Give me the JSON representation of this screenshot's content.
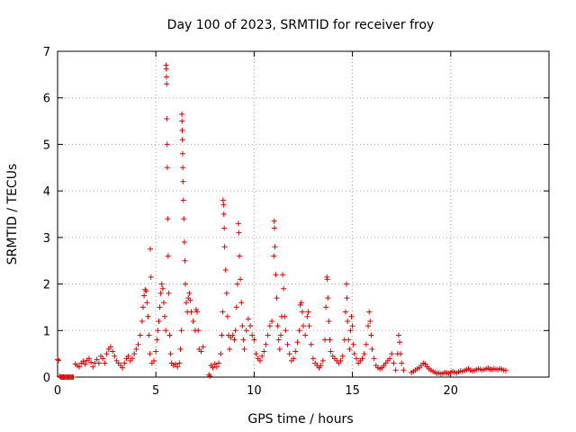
{
  "chart_data": {
    "type": "scatter",
    "title": "Day 100 of 2023, SRMTID for receiver froy",
    "xlabel": "GPS time / hours",
    "ylabel": "SRMTID / TECUs",
    "xlim": [
      0,
      25
    ],
    "ylim": [
      0,
      7
    ],
    "xticks": [
      0,
      5,
      10,
      15,
      20
    ],
    "yticks": [
      0,
      1,
      2,
      3,
      4,
      5,
      6,
      7
    ],
    "grid": true,
    "marker": "+",
    "color": "#e00000",
    "series": [
      {
        "name": "SRMTID",
        "points": [
          [
            0.0,
            0.38
          ],
          [
            0.05,
            0.36
          ],
          [
            0.1,
            0.02
          ],
          [
            0.15,
            0.0
          ],
          [
            0.2,
            0.0
          ],
          [
            0.25,
            0.0
          ],
          [
            0.3,
            0.0
          ],
          [
            0.35,
            0.0
          ],
          [
            0.4,
            0.0
          ],
          [
            0.45,
            0.0
          ],
          [
            0.5,
            0.0
          ],
          [
            0.55,
            0.0
          ],
          [
            0.6,
            0.0
          ],
          [
            0.65,
            0.0
          ],
          [
            0.7,
            0.0
          ],
          [
            0.75,
            0.0
          ],
          [
            0.8,
            0.0
          ],
          [
            0.9,
            0.28
          ],
          [
            1.0,
            0.25
          ],
          [
            1.1,
            0.22
          ],
          [
            1.2,
            0.3
          ],
          [
            1.3,
            0.34
          ],
          [
            1.4,
            0.28
          ],
          [
            1.5,
            0.36
          ],
          [
            1.6,
            0.4
          ],
          [
            1.7,
            0.32
          ],
          [
            1.8,
            0.22
          ],
          [
            1.9,
            0.3
          ],
          [
            2.0,
            0.38
          ],
          [
            2.1,
            0.3
          ],
          [
            2.2,
            0.45
          ],
          [
            2.3,
            0.4
          ],
          [
            2.4,
            0.3
          ],
          [
            2.5,
            0.5
          ],
          [
            2.6,
            0.6
          ],
          [
            2.7,
            0.65
          ],
          [
            2.8,
            0.55
          ],
          [
            2.9,
            0.45
          ],
          [
            3.0,
            0.35
          ],
          [
            3.1,
            0.3
          ],
          [
            3.2,
            0.25
          ],
          [
            3.3,
            0.2
          ],
          [
            3.4,
            0.3
          ],
          [
            3.5,
            0.4
          ],
          [
            3.6,
            0.45
          ],
          [
            3.7,
            0.35
          ],
          [
            3.8,
            0.4
          ],
          [
            3.9,
            0.5
          ],
          [
            4.0,
            0.6
          ],
          [
            4.1,
            0.7
          ],
          [
            4.2,
            0.9
          ],
          [
            4.3,
            1.2
          ],
          [
            4.35,
            1.5
          ],
          [
            4.4,
            1.75
          ],
          [
            4.45,
            1.88
          ],
          [
            4.5,
            1.85
          ],
          [
            4.55,
            1.6
          ],
          [
            4.6,
            1.3
          ],
          [
            4.65,
            0.9
          ],
          [
            4.7,
            0.5
          ],
          [
            4.72,
            2.75
          ],
          [
            4.75,
            2.15
          ],
          [
            4.8,
            0.3
          ],
          [
            4.9,
            0.35
          ],
          [
            5.0,
            0.55
          ],
          [
            5.05,
            0.8
          ],
          [
            5.1,
            1.0
          ],
          [
            5.15,
            1.2
          ],
          [
            5.2,
            1.5
          ],
          [
            5.25,
            1.8
          ],
          [
            5.3,
            2.0
          ],
          [
            5.35,
            1.9
          ],
          [
            5.4,
            1.6
          ],
          [
            5.45,
            1.3
          ],
          [
            5.5,
            1.0
          ],
          [
            5.52,
            6.7
          ],
          [
            5.53,
            6.62
          ],
          [
            5.54,
            6.45
          ],
          [
            5.55,
            6.3
          ],
          [
            5.56,
            5.55
          ],
          [
            5.57,
            5.0
          ],
          [
            5.58,
            4.5
          ],
          [
            5.6,
            3.4
          ],
          [
            5.62,
            2.6
          ],
          [
            5.65,
            1.8
          ],
          [
            5.7,
            0.9
          ],
          [
            5.75,
            0.5
          ],
          [
            5.8,
            0.3
          ],
          [
            5.9,
            0.25
          ],
          [
            6.0,
            0.28
          ],
          [
            6.1,
            0.22
          ],
          [
            6.2,
            0.3
          ],
          [
            6.25,
            0.6
          ],
          [
            6.3,
            1.0
          ],
          [
            6.32,
            5.65
          ],
          [
            6.33,
            5.5
          ],
          [
            6.34,
            5.3
          ],
          [
            6.35,
            5.1
          ],
          [
            6.36,
            4.8
          ],
          [
            6.37,
            4.5
          ],
          [
            6.38,
            4.2
          ],
          [
            6.4,
            3.8
          ],
          [
            6.42,
            3.4
          ],
          [
            6.45,
            2.9
          ],
          [
            6.48,
            2.5
          ],
          [
            6.5,
            2.0
          ],
          [
            6.55,
            1.6
          ],
          [
            6.6,
            1.4
          ],
          [
            6.65,
            1.7
          ],
          [
            6.7,
            1.8
          ],
          [
            6.75,
            1.65
          ],
          [
            6.8,
            1.4
          ],
          [
            6.9,
            1.2
          ],
          [
            7.0,
            1.0
          ],
          [
            7.05,
            1.45
          ],
          [
            7.1,
            1.4
          ],
          [
            7.15,
            1.0
          ],
          [
            7.2,
            0.6
          ],
          [
            7.3,
            0.55
          ],
          [
            7.4,
            0.65
          ],
          [
            7.7,
            0.05
          ],
          [
            7.75,
            0.02
          ],
          [
            7.8,
            0.25
          ],
          [
            7.9,
            0.2
          ],
          [
            8.0,
            0.28
          ],
          [
            8.1,
            0.22
          ],
          [
            8.2,
            0.3
          ],
          [
            8.3,
            0.5
          ],
          [
            8.35,
            0.9
          ],
          [
            8.4,
            1.4
          ],
          [
            8.42,
            3.8
          ],
          [
            8.44,
            3.7
          ],
          [
            8.46,
            3.5
          ],
          [
            8.48,
            3.2
          ],
          [
            8.5,
            2.8
          ],
          [
            8.55,
            2.3
          ],
          [
            8.6,
            1.8
          ],
          [
            8.65,
            1.3
          ],
          [
            8.7,
            0.9
          ],
          [
            8.75,
            0.6
          ],
          [
            8.8,
            0.85
          ],
          [
            8.9,
            0.9
          ],
          [
            9.0,
            0.8
          ],
          [
            9.05,
            1.0
          ],
          [
            9.1,
            1.5
          ],
          [
            9.15,
            2.0
          ],
          [
            9.2,
            3.3
          ],
          [
            9.22,
            3.1
          ],
          [
            9.25,
            2.6
          ],
          [
            9.3,
            2.1
          ],
          [
            9.35,
            1.6
          ],
          [
            9.4,
            1.1
          ],
          [
            9.45,
            0.8
          ],
          [
            9.5,
            0.6
          ],
          [
            9.6,
            1.0
          ],
          [
            9.7,
            1.25
          ],
          [
            9.8,
            1.1
          ],
          [
            9.9,
            0.9
          ],
          [
            10.0,
            0.8
          ],
          [
            10.1,
            0.5
          ],
          [
            10.2,
            0.4
          ],
          [
            10.3,
            0.35
          ],
          [
            10.4,
            0.45
          ],
          [
            10.5,
            0.55
          ],
          [
            10.6,
            0.7
          ],
          [
            10.7,
            0.9
          ],
          [
            10.8,
            1.1
          ],
          [
            10.9,
            1.2
          ],
          [
            11.0,
            2.6
          ],
          [
            11.02,
            3.35
          ],
          [
            11.04,
            3.2
          ],
          [
            11.06,
            2.8
          ],
          [
            11.1,
            2.2
          ],
          [
            11.15,
            1.7
          ],
          [
            11.2,
            1.1
          ],
          [
            11.25,
            0.8
          ],
          [
            11.3,
            0.6
          ],
          [
            11.35,
            0.9
          ],
          [
            11.4,
            1.3
          ],
          [
            11.45,
            2.2
          ],
          [
            11.5,
            1.9
          ],
          [
            11.55,
            1.3
          ],
          [
            11.6,
            1.0
          ],
          [
            11.7,
            0.7
          ],
          [
            11.8,
            0.5
          ],
          [
            11.9,
            0.35
          ],
          [
            12.0,
            0.4
          ],
          [
            12.1,
            0.55
          ],
          [
            12.2,
            0.75
          ],
          [
            12.3,
            1.0
          ],
          [
            12.35,
            1.55
          ],
          [
            12.4,
            1.6
          ],
          [
            12.45,
            1.4
          ],
          [
            12.5,
            1.1
          ],
          [
            12.6,
            0.9
          ],
          [
            12.7,
            1.3
          ],
          [
            12.75,
            1.4
          ],
          [
            12.8,
            1.1
          ],
          [
            12.9,
            0.7
          ],
          [
            13.0,
            0.4
          ],
          [
            13.1,
            0.3
          ],
          [
            13.2,
            0.25
          ],
          [
            13.3,
            0.2
          ],
          [
            13.4,
            0.25
          ],
          [
            13.5,
            0.35
          ],
          [
            13.6,
            0.8
          ],
          [
            13.65,
            1.5
          ],
          [
            13.7,
            2.15
          ],
          [
            13.72,
            2.1
          ],
          [
            13.75,
            1.7
          ],
          [
            13.8,
            1.2
          ],
          [
            13.85,
            0.8
          ],
          [
            13.9,
            0.55
          ],
          [
            14.0,
            0.45
          ],
          [
            14.1,
            0.4
          ],
          [
            14.2,
            0.35
          ],
          [
            14.3,
            0.3
          ],
          [
            14.4,
            0.35
          ],
          [
            14.5,
            0.45
          ],
          [
            14.6,
            0.8
          ],
          [
            14.65,
            1.4
          ],
          [
            14.7,
            2.0
          ],
          [
            14.72,
            1.7
          ],
          [
            14.75,
            1.2
          ],
          [
            14.8,
            0.8
          ],
          [
            14.85,
            0.6
          ],
          [
            14.9,
            1.0
          ],
          [
            14.95,
            1.3
          ],
          [
            15.0,
            1.1
          ],
          [
            15.05,
            0.7
          ],
          [
            15.1,
            0.5
          ],
          [
            15.2,
            0.4
          ],
          [
            15.3,
            0.3
          ],
          [
            15.4,
            0.35
          ],
          [
            15.5,
            0.4
          ],
          [
            15.6,
            0.5
          ],
          [
            15.7,
            0.7
          ],
          [
            15.8,
            1.1
          ],
          [
            15.85,
            1.4
          ],
          [
            15.9,
            1.2
          ],
          [
            15.95,
            0.9
          ],
          [
            16.0,
            0.6
          ],
          [
            16.1,
            0.4
          ],
          [
            16.2,
            0.25
          ],
          [
            16.3,
            0.2
          ],
          [
            16.4,
            0.18
          ],
          [
            16.5,
            0.2
          ],
          [
            16.6,
            0.25
          ],
          [
            16.7,
            0.3
          ],
          [
            16.8,
            0.35
          ],
          [
            16.9,
            0.4
          ],
          [
            17.0,
            0.5
          ],
          [
            17.1,
            0.3
          ],
          [
            17.2,
            0.15
          ],
          [
            17.3,
            0.5
          ],
          [
            17.35,
            0.9
          ],
          [
            17.4,
            0.75
          ],
          [
            17.45,
            0.5
          ],
          [
            17.5,
            0.3
          ],
          [
            17.6,
            0.15
          ],
          [
            18.0,
            0.1
          ],
          [
            18.1,
            0.12
          ],
          [
            18.2,
            0.15
          ],
          [
            18.3,
            0.18
          ],
          [
            18.4,
            0.2
          ],
          [
            18.5,
            0.25
          ],
          [
            18.6,
            0.3
          ],
          [
            18.7,
            0.28
          ],
          [
            18.8,
            0.22
          ],
          [
            18.9,
            0.18
          ],
          [
            19.0,
            0.15
          ],
          [
            19.1,
            0.12
          ],
          [
            19.2,
            0.1
          ],
          [
            19.3,
            0.08
          ],
          [
            19.4,
            0.09
          ],
          [
            19.5,
            0.07
          ],
          [
            19.6,
            0.08
          ],
          [
            19.7,
            0.1
          ],
          [
            19.8,
            0.09
          ],
          [
            19.9,
            0.08
          ],
          [
            20.0,
            0.1
          ],
          [
            20.1,
            0.12
          ],
          [
            20.2,
            0.1
          ],
          [
            20.3,
            0.09
          ],
          [
            20.4,
            0.11
          ],
          [
            20.5,
            0.13
          ],
          [
            20.6,
            0.12
          ],
          [
            20.7,
            0.14
          ],
          [
            20.8,
            0.16
          ],
          [
            20.9,
            0.18
          ],
          [
            21.0,
            0.15
          ],
          [
            21.1,
            0.13
          ],
          [
            21.2,
            0.14
          ],
          [
            21.3,
            0.16
          ],
          [
            21.4,
            0.18
          ],
          [
            21.5,
            0.17
          ],
          [
            21.6,
            0.15
          ],
          [
            21.7,
            0.16
          ],
          [
            21.8,
            0.18
          ],
          [
            21.9,
            0.19
          ],
          [
            22.0,
            0.17
          ],
          [
            22.1,
            0.16
          ],
          [
            22.2,
            0.18
          ],
          [
            22.3,
            0.17
          ],
          [
            22.4,
            0.16
          ],
          [
            22.5,
            0.18
          ],
          [
            22.6,
            0.17
          ],
          [
            22.7,
            0.15
          ],
          [
            22.8,
            0.14
          ]
        ]
      }
    ]
  }
}
